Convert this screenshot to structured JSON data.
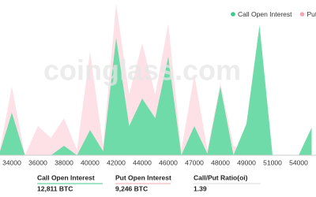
{
  "chart_data": {
    "type": "area",
    "watermark": "coinglass.com",
    "categories": [
      null,
      "34000",
      null,
      "36000",
      null,
      "38000",
      null,
      "40000",
      null,
      "42000",
      null,
      "44000",
      null,
      "46000",
      null,
      "47000",
      null,
      "48000",
      null,
      "49000",
      null,
      "51000",
      null,
      "54000",
      null
    ],
    "series": [
      {
        "name": "Put Open Interest",
        "color": "#fde1e6",
        "legend_color": "#f2a7b6",
        "values": [
          0,
          87,
          0,
          37,
          22,
          47,
          7,
          132,
          12,
          192,
          77,
          142,
          77,
          167,
          7,
          102,
          7,
          92,
          12,
          5,
          32,
          0,
          0,
          0,
          22
        ]
      },
      {
        "name": "Call Open Interest",
        "color": "#6fdba9",
        "legend_color": "#3fc98f",
        "values": [
          0,
          54,
          0,
          0,
          0,
          12,
          0,
          32,
          5,
          149,
          37,
          72,
          47,
          125,
          0,
          37,
          2,
          87,
          0,
          40,
          165,
          0,
          0,
          0,
          35
        ]
      }
    ],
    "legend_order": [
      1,
      0
    ],
    "ylim": [
      0,
      200
    ]
  },
  "summary": [
    {
      "label": "Call Open Interest",
      "value": "12,811 BTC",
      "color": "#3fc98f"
    },
    {
      "label": "Put Open Interest",
      "value": "9,246 BTC",
      "color": "#f2a7b6"
    },
    {
      "label": "Call/Put Ratio(oi)",
      "value": "1.39",
      "color": "#dddddd"
    }
  ]
}
